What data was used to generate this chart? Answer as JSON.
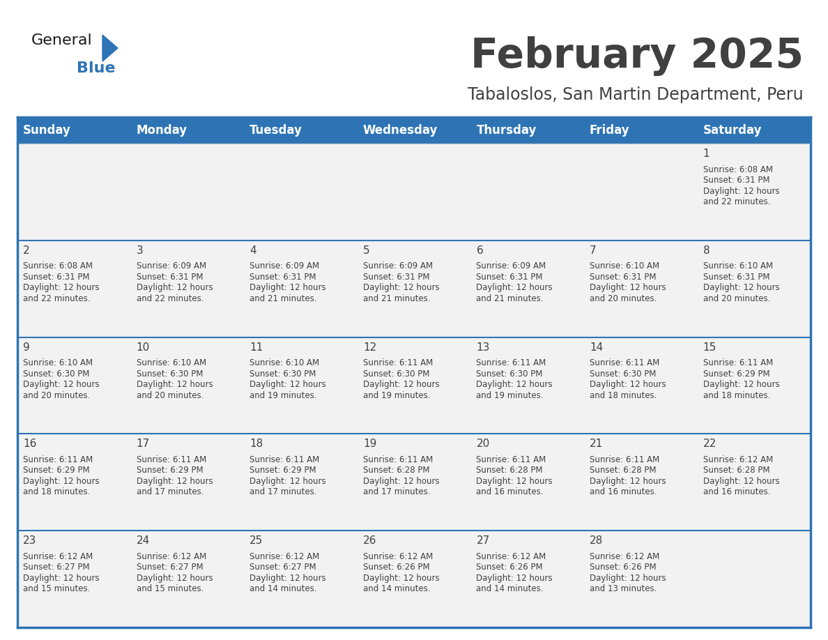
{
  "title": "February 2025",
  "subtitle": "Tabaloslos, San Martin Department, Peru",
  "header_color": "#2E74B5",
  "header_text_color": "#FFFFFF",
  "days_of_week": [
    "Sunday",
    "Monday",
    "Tuesday",
    "Wednesday",
    "Thursday",
    "Friday",
    "Saturday"
  ],
  "weeks": [
    [
      {
        "day": "",
        "info": ""
      },
      {
        "day": "",
        "info": ""
      },
      {
        "day": "",
        "info": ""
      },
      {
        "day": "",
        "info": ""
      },
      {
        "day": "",
        "info": ""
      },
      {
        "day": "",
        "info": ""
      },
      {
        "day": "1",
        "info": "Sunrise: 6:08 AM\nSunset: 6:31 PM\nDaylight: 12 hours\nand 22 minutes."
      }
    ],
    [
      {
        "day": "2",
        "info": "Sunrise: 6:08 AM\nSunset: 6:31 PM\nDaylight: 12 hours\nand 22 minutes."
      },
      {
        "day": "3",
        "info": "Sunrise: 6:09 AM\nSunset: 6:31 PM\nDaylight: 12 hours\nand 22 minutes."
      },
      {
        "day": "4",
        "info": "Sunrise: 6:09 AM\nSunset: 6:31 PM\nDaylight: 12 hours\nand 21 minutes."
      },
      {
        "day": "5",
        "info": "Sunrise: 6:09 AM\nSunset: 6:31 PM\nDaylight: 12 hours\nand 21 minutes."
      },
      {
        "day": "6",
        "info": "Sunrise: 6:09 AM\nSunset: 6:31 PM\nDaylight: 12 hours\nand 21 minutes."
      },
      {
        "day": "7",
        "info": "Sunrise: 6:10 AM\nSunset: 6:31 PM\nDaylight: 12 hours\nand 20 minutes."
      },
      {
        "day": "8",
        "info": "Sunrise: 6:10 AM\nSunset: 6:31 PM\nDaylight: 12 hours\nand 20 minutes."
      }
    ],
    [
      {
        "day": "9",
        "info": "Sunrise: 6:10 AM\nSunset: 6:30 PM\nDaylight: 12 hours\nand 20 minutes."
      },
      {
        "day": "10",
        "info": "Sunrise: 6:10 AM\nSunset: 6:30 PM\nDaylight: 12 hours\nand 20 minutes."
      },
      {
        "day": "11",
        "info": "Sunrise: 6:10 AM\nSunset: 6:30 PM\nDaylight: 12 hours\nand 19 minutes."
      },
      {
        "day": "12",
        "info": "Sunrise: 6:11 AM\nSunset: 6:30 PM\nDaylight: 12 hours\nand 19 minutes."
      },
      {
        "day": "13",
        "info": "Sunrise: 6:11 AM\nSunset: 6:30 PM\nDaylight: 12 hours\nand 19 minutes."
      },
      {
        "day": "14",
        "info": "Sunrise: 6:11 AM\nSunset: 6:30 PM\nDaylight: 12 hours\nand 18 minutes."
      },
      {
        "day": "15",
        "info": "Sunrise: 6:11 AM\nSunset: 6:29 PM\nDaylight: 12 hours\nand 18 minutes."
      }
    ],
    [
      {
        "day": "16",
        "info": "Sunrise: 6:11 AM\nSunset: 6:29 PM\nDaylight: 12 hours\nand 18 minutes."
      },
      {
        "day": "17",
        "info": "Sunrise: 6:11 AM\nSunset: 6:29 PM\nDaylight: 12 hours\nand 17 minutes."
      },
      {
        "day": "18",
        "info": "Sunrise: 6:11 AM\nSunset: 6:29 PM\nDaylight: 12 hours\nand 17 minutes."
      },
      {
        "day": "19",
        "info": "Sunrise: 6:11 AM\nSunset: 6:28 PM\nDaylight: 12 hours\nand 17 minutes."
      },
      {
        "day": "20",
        "info": "Sunrise: 6:11 AM\nSunset: 6:28 PM\nDaylight: 12 hours\nand 16 minutes."
      },
      {
        "day": "21",
        "info": "Sunrise: 6:11 AM\nSunset: 6:28 PM\nDaylight: 12 hours\nand 16 minutes."
      },
      {
        "day": "22",
        "info": "Sunrise: 6:12 AM\nSunset: 6:28 PM\nDaylight: 12 hours\nand 16 minutes."
      }
    ],
    [
      {
        "day": "23",
        "info": "Sunrise: 6:12 AM\nSunset: 6:27 PM\nDaylight: 12 hours\nand 15 minutes."
      },
      {
        "day": "24",
        "info": "Sunrise: 6:12 AM\nSunset: 6:27 PM\nDaylight: 12 hours\nand 15 minutes."
      },
      {
        "day": "25",
        "info": "Sunrise: 6:12 AM\nSunset: 6:27 PM\nDaylight: 12 hours\nand 14 minutes."
      },
      {
        "day": "26",
        "info": "Sunrise: 6:12 AM\nSunset: 6:26 PM\nDaylight: 12 hours\nand 14 minutes."
      },
      {
        "day": "27",
        "info": "Sunrise: 6:12 AM\nSunset: 6:26 PM\nDaylight: 12 hours\nand 14 minutes."
      },
      {
        "day": "28",
        "info": "Sunrise: 6:12 AM\nSunset: 6:26 PM\nDaylight: 12 hours\nand 13 minutes."
      },
      {
        "day": "",
        "info": ""
      }
    ]
  ],
  "cell_bg_color": "#F2F2F2",
  "border_color": "#2E74B5",
  "text_color": "#404040",
  "day_number_color": "#404040",
  "logo_general_color": "#1A1A1A",
  "logo_blue_color": "#2E74B5",
  "title_fontsize": 42,
  "subtitle_fontsize": 17,
  "header_fontsize": 12,
  "day_num_fontsize": 11,
  "info_fontsize": 8.5
}
